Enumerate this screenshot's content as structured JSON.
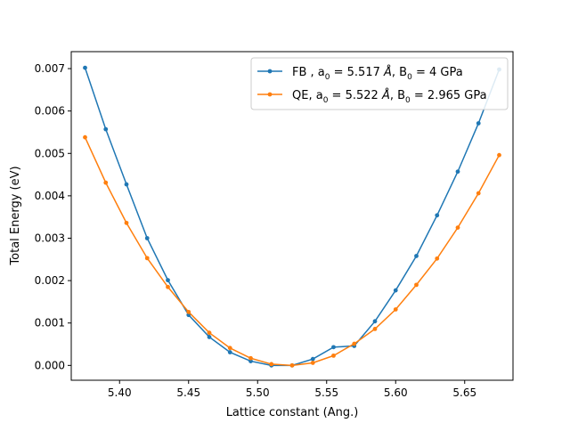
{
  "chart_data": {
    "type": "line",
    "xlabel": "Lattice constant (Ang.)",
    "ylabel": "Total Energy (eV)",
    "xlim": [
      5.365,
      5.685
    ],
    "ylim": [
      -0.00035,
      0.0074
    ],
    "x_ticks": [
      "5.40",
      "5.45",
      "5.50",
      "5.55",
      "5.60",
      "5.65"
    ],
    "y_ticks": [
      "0.000",
      "0.001",
      "0.002",
      "0.003",
      "0.004",
      "0.005",
      "0.006",
      "0.007"
    ],
    "legend_position": "top-right",
    "grid": false,
    "series": [
      {
        "name_parts": {
          "a": "FB , a",
          "b": " = 5.517 ",
          "c": ", B",
          "d": " = 4 GPa"
        },
        "color": "#1f77b4",
        "x": [
          5.375,
          5.39,
          5.405,
          5.42,
          5.435,
          5.45,
          5.465,
          5.48,
          5.495,
          5.51,
          5.525,
          5.54,
          5.555,
          5.57,
          5.585,
          5.6,
          5.615,
          5.63,
          5.645,
          5.66,
          5.675
        ],
        "y": [
          0.00702,
          0.00557,
          0.00427,
          0.003,
          0.00201,
          0.00119,
          0.00067,
          0.00031,
          0.0001,
          0.0,
          0.0,
          0.00015,
          0.00043,
          0.00046,
          0.00104,
          0.00177,
          0.00258,
          0.00354,
          0.00457,
          0.00571,
          0.00698
        ]
      },
      {
        "name_parts": {
          "a": "QE, a",
          "b": " = 5.522 ",
          "c": ", B",
          "d": " = 2.965 GPa"
        },
        "color": "#ff7f0e",
        "x": [
          5.375,
          5.39,
          5.405,
          5.42,
          5.435,
          5.45,
          5.465,
          5.48,
          5.495,
          5.51,
          5.525,
          5.54,
          5.555,
          5.57,
          5.585,
          5.6,
          5.615,
          5.63,
          5.645,
          5.66,
          5.675
        ],
        "y": [
          0.00538,
          0.00431,
          0.00336,
          0.00253,
          0.00185,
          0.00126,
          0.00077,
          0.00041,
          0.00017,
          3e-05,
          0.0,
          6e-05,
          0.00023,
          0.00051,
          0.00086,
          0.00132,
          0.0019,
          0.00252,
          0.00325,
          0.00406,
          0.00496
        ]
      }
    ],
    "legend_labels": {
      "subscript": "0",
      "unit": "Å"
    }
  }
}
